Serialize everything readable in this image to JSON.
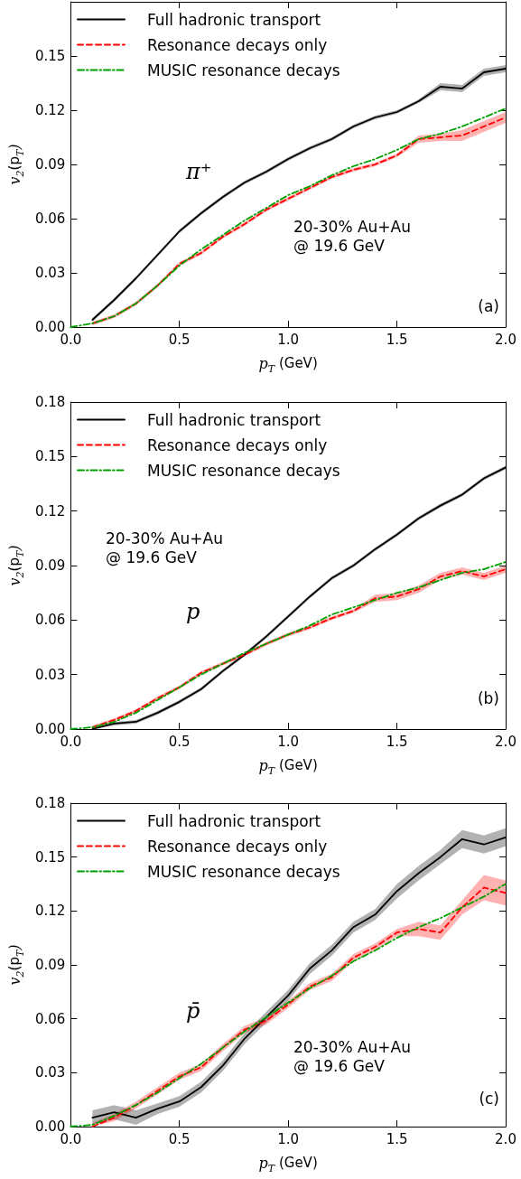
{
  "chart_data": [
    {
      "type": "line",
      "xlabel": "p$_{T}$ (GeV)",
      "ylabel": "v$_{2}$(p$_{T}$)",
      "xlim": [
        0,
        2
      ],
      "ylim": [
        0,
        0.18
      ],
      "xticks": [
        {
          "value": 0,
          "label": "0.0"
        },
        {
          "value": 0.5,
          "label": "0.5"
        },
        {
          "value": 1,
          "label": "1.0"
        },
        {
          "value": 1.5,
          "label": "1.5"
        },
        {
          "value": 2,
          "label": "2.0"
        }
      ],
      "yticks": [
        {
          "value": 0,
          "label": "0.00"
        },
        {
          "value": 0.03,
          "label": "0.03"
        },
        {
          "value": 0.06,
          "label": "0.06"
        },
        {
          "value": 0.09,
          "label": "0.09"
        },
        {
          "value": 0.12,
          "label": "0.12"
        },
        {
          "value": 0.15,
          "label": "0.15"
        }
      ],
      "legend": "top left",
      "grid": false,
      "marker": "none",
      "annotations": [
        "π⁺",
        "20-30% Au+Au\n@ 19.6 GeV",
        "(a)"
      ],
      "series": [
        {
          "name": "Full hadronic transport",
          "color": "#000000",
          "line_style": "solid",
          "x": [
            0.1,
            0.2,
            0.3,
            0.4,
            0.5,
            0.6,
            0.7,
            0.8,
            0.9,
            1.0,
            1.1,
            1.2,
            1.3,
            1.4,
            1.5,
            1.6,
            1.7,
            1.8,
            1.9,
            2.0
          ],
          "values": [
            0.004,
            0.015,
            0.027,
            0.04,
            0.053,
            0.063,
            0.072,
            0.08,
            0.086,
            0.093,
            0.099,
            0.104,
            0.111,
            0.116,
            0.119,
            0.125,
            0.133,
            0.132,
            0.141,
            0.143
          ],
          "lower": [
            0.003,
            0.014,
            0.026,
            0.039,
            0.052,
            0.062,
            0.071,
            0.079,
            0.085,
            0.092,
            0.098,
            0.103,
            0.11,
            0.115,
            0.118,
            0.124,
            0.131,
            0.13,
            0.139,
            0.141
          ],
          "upper": [
            0.005,
            0.016,
            0.028,
            0.041,
            0.054,
            0.064,
            0.073,
            0.081,
            0.087,
            0.094,
            0.1,
            0.105,
            0.112,
            0.117,
            0.12,
            0.126,
            0.135,
            0.134,
            0.143,
            0.145
          ]
        },
        {
          "name": "Resonance decays only",
          "color": "#ff0000",
          "line_style": "dashed",
          "x": [
            0.1,
            0.2,
            0.3,
            0.4,
            0.5,
            0.6,
            0.7,
            0.8,
            0.9,
            1.0,
            1.1,
            1.2,
            1.3,
            1.4,
            1.5,
            1.6,
            1.7,
            1.8,
            1.9,
            2.0
          ],
          "values": [
            0.002,
            0.006,
            0.013,
            0.023,
            0.035,
            0.041,
            0.05,
            0.057,
            0.065,
            0.071,
            0.077,
            0.083,
            0.087,
            0.09,
            0.095,
            0.104,
            0.105,
            0.106,
            0.111,
            0.116
          ],
          "lower": [
            0.001,
            0.005,
            0.012,
            0.022,
            0.034,
            0.04,
            0.049,
            0.056,
            0.064,
            0.07,
            0.076,
            0.082,
            0.086,
            0.089,
            0.094,
            0.102,
            0.103,
            0.103,
            0.108,
            0.113
          ],
          "upper": [
            0.003,
            0.007,
            0.014,
            0.024,
            0.036,
            0.042,
            0.051,
            0.058,
            0.066,
            0.072,
            0.078,
            0.084,
            0.088,
            0.091,
            0.096,
            0.106,
            0.107,
            0.109,
            0.114,
            0.119
          ]
        },
        {
          "name": "MUSIC resonance decays",
          "color": "#00a000",
          "line_style": "dashdot",
          "x": [
            0,
            0.1,
            0.2,
            0.3,
            0.4,
            0.5,
            0.6,
            0.7,
            0.8,
            0.9,
            1.0,
            1.1,
            1.2,
            1.3,
            1.4,
            1.5,
            1.6,
            1.7,
            1.8,
            1.9,
            2.0
          ],
          "values": [
            0,
            0.002,
            0.006,
            0.013,
            0.023,
            0.034,
            0.043,
            0.051,
            0.059,
            0.066,
            0.073,
            0.078,
            0.084,
            0.089,
            0.093,
            0.098,
            0.104,
            0.107,
            0.111,
            0.116,
            0.121
          ]
        }
      ]
    },
    {
      "type": "line",
      "xlabel": "p$_{T}$ (GeV)",
      "ylabel": "v$_{2}$(p$_{T}$)",
      "xlim": [
        0,
        2
      ],
      "ylim": [
        0,
        0.18
      ],
      "xticks": [
        {
          "value": 0,
          "label": "0.0"
        },
        {
          "value": 0.5,
          "label": "0.5"
        },
        {
          "value": 1,
          "label": "1.0"
        },
        {
          "value": 1.5,
          "label": "1.5"
        },
        {
          "value": 2,
          "label": "2.0"
        }
      ],
      "yticks": [
        {
          "value": 0,
          "label": "0.00"
        },
        {
          "value": 0.03,
          "label": "0.03"
        },
        {
          "value": 0.06,
          "label": "0.06"
        },
        {
          "value": 0.09,
          "label": "0.09"
        },
        {
          "value": 0.12,
          "label": "0.12"
        },
        {
          "value": 0.15,
          "label": "0.15"
        },
        {
          "value": 0.18,
          "label": "0.18"
        }
      ],
      "legend": "top left",
      "grid": false,
      "marker": "none",
      "annotations": [
        "p",
        "20-30% Au+Au\n@ 19.6 GeV",
        "(b)"
      ],
      "series": [
        {
          "name": "Full hadronic transport",
          "color": "#000000",
          "line_style": "solid",
          "x": [
            0.1,
            0.2,
            0.3,
            0.4,
            0.5,
            0.6,
            0.7,
            0.8,
            0.9,
            1.0,
            1.1,
            1.2,
            1.3,
            1.4,
            1.5,
            1.6,
            1.7,
            1.8,
            1.9,
            2.0
          ],
          "values": [
            0.0,
            0.003,
            0.004,
            0.009,
            0.015,
            0.022,
            0.032,
            0.041,
            0.051,
            0.062,
            0.073,
            0.083,
            0.09,
            0.099,
            0.107,
            0.116,
            0.123,
            0.129,
            0.138,
            0.144
          ],
          "lower": [
            0.0,
            0.002,
            0.003,
            0.008,
            0.014,
            0.021,
            0.031,
            0.04,
            0.05,
            0.061,
            0.072,
            0.082,
            0.089,
            0.098,
            0.106,
            0.115,
            0.122,
            0.128,
            0.137,
            0.143
          ],
          "upper": [
            0.001,
            0.004,
            0.005,
            0.01,
            0.016,
            0.023,
            0.033,
            0.042,
            0.052,
            0.063,
            0.074,
            0.084,
            0.091,
            0.1,
            0.108,
            0.117,
            0.124,
            0.13,
            0.139,
            0.145
          ]
        },
        {
          "name": "Resonance decays only",
          "color": "#ff0000",
          "line_style": "dashed",
          "x": [
            0.1,
            0.2,
            0.3,
            0.4,
            0.5,
            0.6,
            0.7,
            0.8,
            0.9,
            1.0,
            1.1,
            1.2,
            1.3,
            1.4,
            1.5,
            1.6,
            1.7,
            1.8,
            1.9,
            2.0
          ],
          "values": [
            0.001,
            0.005,
            0.01,
            0.017,
            0.023,
            0.031,
            0.036,
            0.041,
            0.047,
            0.052,
            0.056,
            0.061,
            0.065,
            0.072,
            0.073,
            0.077,
            0.084,
            0.087,
            0.084,
            0.088
          ],
          "lower": [
            0.0,
            0.004,
            0.009,
            0.016,
            0.022,
            0.03,
            0.035,
            0.04,
            0.046,
            0.051,
            0.055,
            0.06,
            0.064,
            0.07,
            0.071,
            0.075,
            0.082,
            0.085,
            0.082,
            0.086
          ],
          "upper": [
            0.002,
            0.006,
            0.011,
            0.018,
            0.024,
            0.032,
            0.037,
            0.042,
            0.048,
            0.053,
            0.057,
            0.062,
            0.066,
            0.074,
            0.075,
            0.079,
            0.086,
            0.089,
            0.086,
            0.09
          ]
        },
        {
          "name": "MUSIC resonance decays",
          "color": "#00a000",
          "line_style": "dashdot",
          "x": [
            0,
            0.1,
            0.2,
            0.3,
            0.4,
            0.5,
            0.6,
            0.7,
            0.8,
            0.9,
            1.0,
            1.1,
            1.2,
            1.3,
            1.4,
            1.5,
            1.6,
            1.7,
            1.8,
            1.9,
            2.0
          ],
          "values": [
            0,
            0.001,
            0.004,
            0.009,
            0.016,
            0.023,
            0.03,
            0.036,
            0.042,
            0.047,
            0.052,
            0.057,
            0.063,
            0.067,
            0.071,
            0.075,
            0.078,
            0.082,
            0.086,
            0.088,
            0.092
          ]
        }
      ]
    },
    {
      "type": "line",
      "xlabel": "p$_{T}$ (GeV)",
      "ylabel": "v$_{2}$(p$_{T}$)",
      "xlim": [
        0,
        2
      ],
      "ylim": [
        0,
        0.18
      ],
      "xticks": [
        {
          "value": 0,
          "label": "0.0"
        },
        {
          "value": 0.5,
          "label": "0.5"
        },
        {
          "value": 1,
          "label": "1.0"
        },
        {
          "value": 1.5,
          "label": "1.5"
        },
        {
          "value": 2,
          "label": "2.0"
        }
      ],
      "yticks": [
        {
          "value": 0,
          "label": "0.00"
        },
        {
          "value": 0.03,
          "label": "0.03"
        },
        {
          "value": 0.06,
          "label": "0.06"
        },
        {
          "value": 0.09,
          "label": "0.09"
        },
        {
          "value": 0.12,
          "label": "0.12"
        },
        {
          "value": 0.15,
          "label": "0.15"
        },
        {
          "value": 0.18,
          "label": "0.18"
        }
      ],
      "legend": "top left",
      "grid": false,
      "marker": "none",
      "annotations": [
        "p̄",
        "20-30% Au+Au\n@ 19.6 GeV",
        "(c)"
      ],
      "series": [
        {
          "name": "Full hadronic transport",
          "color": "#000000",
          "line_style": "solid",
          "x": [
            0.1,
            0.2,
            0.3,
            0.4,
            0.5,
            0.6,
            0.7,
            0.8,
            0.9,
            1.0,
            1.1,
            1.2,
            1.3,
            1.4,
            1.5,
            1.6,
            1.7,
            1.8,
            1.9,
            2.0
          ],
          "values": [
            0.005,
            0.008,
            0.005,
            0.01,
            0.014,
            0.022,
            0.034,
            0.049,
            0.061,
            0.073,
            0.088,
            0.098,
            0.111,
            0.118,
            0.131,
            0.141,
            0.15,
            0.16,
            0.157,
            0.161
          ],
          "lower": [
            0.001,
            0.004,
            0.001,
            0.007,
            0.011,
            0.019,
            0.031,
            0.046,
            0.058,
            0.07,
            0.085,
            0.095,
            0.108,
            0.115,
            0.127,
            0.137,
            0.146,
            0.155,
            0.152,
            0.156
          ],
          "upper": [
            0.009,
            0.012,
            0.009,
            0.013,
            0.017,
            0.025,
            0.037,
            0.052,
            0.064,
            0.076,
            0.091,
            0.101,
            0.114,
            0.121,
            0.135,
            0.145,
            0.154,
            0.165,
            0.162,
            0.166
          ]
        },
        {
          "name": "Resonance decays only",
          "color": "#ff0000",
          "line_style": "dashed",
          "x": [
            0.1,
            0.2,
            0.3,
            0.4,
            0.5,
            0.6,
            0.7,
            0.8,
            0.9,
            1.0,
            1.1,
            1.2,
            1.3,
            1.4,
            1.5,
            1.6,
            1.7,
            1.8,
            1.9,
            2.0
          ],
          "values": [
            0.0,
            0.005,
            0.012,
            0.02,
            0.028,
            0.033,
            0.044,
            0.054,
            0.059,
            0.068,
            0.078,
            0.083,
            0.094,
            0.1,
            0.108,
            0.11,
            0.108,
            0.122,
            0.133,
            0.13
          ],
          "lower": [
            0.0,
            0.003,
            0.01,
            0.018,
            0.026,
            0.031,
            0.042,
            0.052,
            0.057,
            0.066,
            0.076,
            0.081,
            0.092,
            0.098,
            0.106,
            0.106,
            0.104,
            0.118,
            0.126,
            0.123
          ],
          "upper": [
            0.002,
            0.007,
            0.014,
            0.022,
            0.03,
            0.035,
            0.046,
            0.056,
            0.061,
            0.07,
            0.08,
            0.085,
            0.096,
            0.102,
            0.11,
            0.114,
            0.112,
            0.126,
            0.14,
            0.137
          ]
        },
        {
          "name": "MUSIC resonance decays",
          "color": "#00a000",
          "line_style": "dashdot",
          "x": [
            0,
            0.1,
            0.2,
            0.3,
            0.4,
            0.5,
            0.6,
            0.7,
            0.8,
            0.9,
            1.0,
            1.1,
            1.2,
            1.3,
            1.4,
            1.5,
            1.6,
            1.7,
            1.8,
            1.9,
            2.0
          ],
          "values": [
            0,
            0.001,
            0.006,
            0.012,
            0.019,
            0.027,
            0.035,
            0.044,
            0.053,
            0.061,
            0.069,
            0.077,
            0.084,
            0.092,
            0.098,
            0.105,
            0.111,
            0.116,
            0.122,
            0.128,
            0.135
          ]
        }
      ]
    }
  ]
}
